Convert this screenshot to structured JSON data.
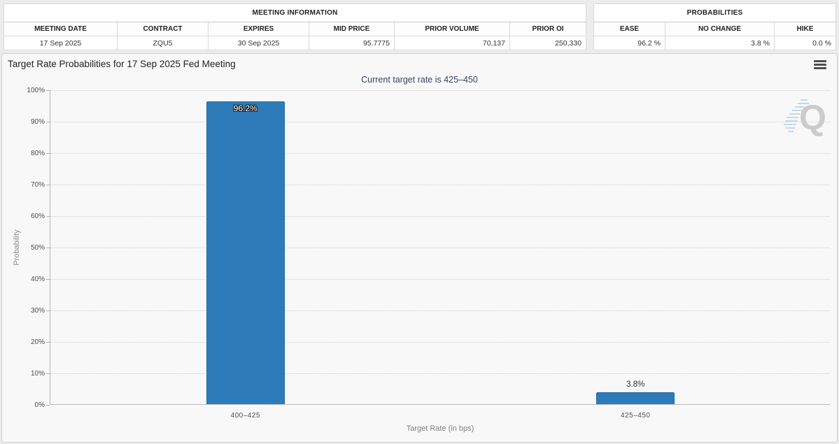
{
  "page": {
    "background": "#ececec"
  },
  "meeting_info": {
    "title": "MEETING INFORMATION",
    "columns": [
      "MEETING DATE",
      "CONTRACT",
      "EXPIRES",
      "MID PRICE",
      "PRIOR VOLUME",
      "PRIOR OI"
    ],
    "values": [
      "17 Sep 2025",
      "ZQU5",
      "30 Sep 2025",
      "95.7775",
      "70,137",
      "250,330"
    ]
  },
  "probabilities": {
    "title": "PROBABILITIES",
    "columns": [
      "EASE",
      "NO CHANGE",
      "HIKE"
    ],
    "values": [
      "96.2 %",
      "3.8 %",
      "0.0 %"
    ]
  },
  "chart": {
    "title": "Target Rate Probabilities for 17 Sep 2025 Fed Meeting",
    "subtitle": "Current target rate is 425–450",
    "menu_icon": "hamburger-menu-icon",
    "watermark_letter": "Q"
  },
  "chart_data": {
    "type": "bar",
    "categories": [
      "400–425",
      "425–450"
    ],
    "values": [
      96.2,
      3.8
    ],
    "bar_labels": [
      "96.2%",
      "3.8%"
    ],
    "title": "Target Rate Probabilities for 17 Sep 2025 Fed Meeting",
    "subtitle": "Current target rate is 425–450",
    "xlabel": "Target Rate (in bps)",
    "ylabel": "Probability",
    "ylim": [
      0,
      100
    ],
    "ytick_step": 10,
    "ytick_suffix": "%",
    "grid": "horizontal-dotted",
    "legend": false,
    "bar_color": "#2d7cb9",
    "bar_border_color": "#2069a4"
  }
}
